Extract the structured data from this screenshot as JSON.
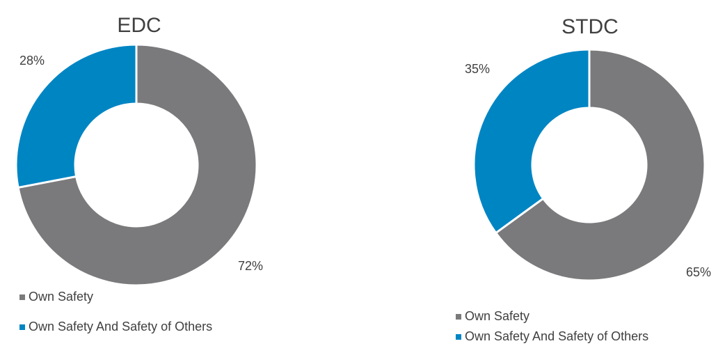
{
  "chart_data": [
    {
      "type": "donut",
      "title": "EDC",
      "categories": [
        "Own Safety",
        "Own Safety And Safety of Others"
      ],
      "values": [
        72,
        28
      ],
      "value_labels": [
        "72%",
        "28%"
      ],
      "colors": [
        "#7a7a7c",
        "#0085c3"
      ]
    },
    {
      "type": "donut",
      "title": "STDC",
      "categories": [
        "Own Safety",
        "Own Safety And Safety of Others"
      ],
      "values": [
        65,
        35
      ],
      "value_labels": [
        "65%",
        "35%"
      ],
      "colors": [
        "#7a7a7c",
        "#0085c3"
      ]
    }
  ]
}
